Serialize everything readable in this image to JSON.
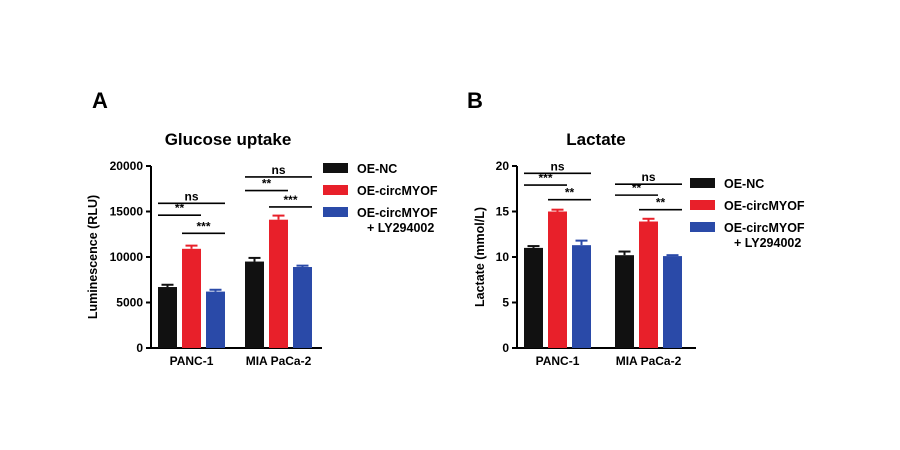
{
  "colors": {
    "OE-NC": "#111111",
    "OE-circMYOF": "#e8202a",
    "OE-circMYOF + LY294002": "#2a4aa8"
  },
  "chart_data": [
    {
      "panel": "A",
      "type": "bar",
      "title": "Glucose uptake",
      "xlabel": "",
      "ylabel": "Luminescence (RLU)",
      "ylim": [
        0,
        20000
      ],
      "yticks": [
        0,
        5000,
        10000,
        15000,
        20000
      ],
      "categories": [
        "PANC-1",
        "MIA PaCa-2"
      ],
      "series": [
        {
          "name": "OE-NC",
          "values": [
            6700,
            9500
          ],
          "errors": [
            250,
            400
          ]
        },
        {
          "name": "OE-circMYOF",
          "values": [
            10900,
            14100
          ],
          "errors": [
            350,
            450
          ]
        },
        {
          "name": "OE-circMYOF\n+ LY294002",
          "values": [
            6200,
            8900
          ],
          "errors": [
            200,
            150
          ]
        }
      ],
      "legend": [
        "OE-NC",
        "OE-circMYOF",
        "OE-circMYOF",
        "+ LY294002"
      ],
      "legend_position": "right",
      "significance": [
        {
          "category": 0,
          "from": 0,
          "to": 2,
          "label": "ns",
          "y": 15900
        },
        {
          "category": 0,
          "from": 0,
          "to": 1,
          "label": "**",
          "y": 14600
        },
        {
          "category": 0,
          "from": 1,
          "to": 2,
          "label": "***",
          "y": 12600
        },
        {
          "category": 1,
          "from": 0,
          "to": 2,
          "label": "ns",
          "y": 18800
        },
        {
          "category": 1,
          "from": 0,
          "to": 1,
          "label": "**",
          "y": 17300
        },
        {
          "category": 1,
          "from": 1,
          "to": 2,
          "label": "***",
          "y": 15500
        }
      ]
    },
    {
      "panel": "B",
      "type": "bar",
      "title": "Lactate",
      "xlabel": "",
      "ylabel": "Lactate (mmol/L)",
      "ylim": [
        0,
        20
      ],
      "yticks": [
        0,
        5,
        10,
        15,
        20
      ],
      "categories": [
        "PANC-1",
        "MIA PaCa-2"
      ],
      "series": [
        {
          "name": "OE-NC",
          "values": [
            11.0,
            10.2
          ],
          "errors": [
            0.2,
            0.4
          ]
        },
        {
          "name": "OE-circMYOF",
          "values": [
            15.0,
            13.9
          ],
          "errors": [
            0.2,
            0.3
          ]
        },
        {
          "name": "OE-circMYOF\n+ LY294002",
          "values": [
            11.3,
            10.1
          ],
          "errors": [
            0.5,
            0.1
          ]
        }
      ],
      "legend": [
        "OE-NC",
        "OE-circMYOF",
        "OE-circMYOF",
        "+ LY294002"
      ],
      "legend_position": "right",
      "significance": [
        {
          "category": 0,
          "from": 0,
          "to": 2,
          "label": "ns",
          "y": 19.2
        },
        {
          "category": 0,
          "from": 0,
          "to": 1,
          "label": "***",
          "y": 17.9
        },
        {
          "category": 0,
          "from": 1,
          "to": 2,
          "label": "**",
          "y": 16.3
        },
        {
          "category": 1,
          "from": 0,
          "to": 2,
          "label": "ns",
          "y": 18.0
        },
        {
          "category": 1,
          "from": 0,
          "to": 1,
          "label": "**",
          "y": 16.8
        },
        {
          "category": 1,
          "from": 1,
          "to": 2,
          "label": "**",
          "y": 15.2
        }
      ]
    }
  ]
}
